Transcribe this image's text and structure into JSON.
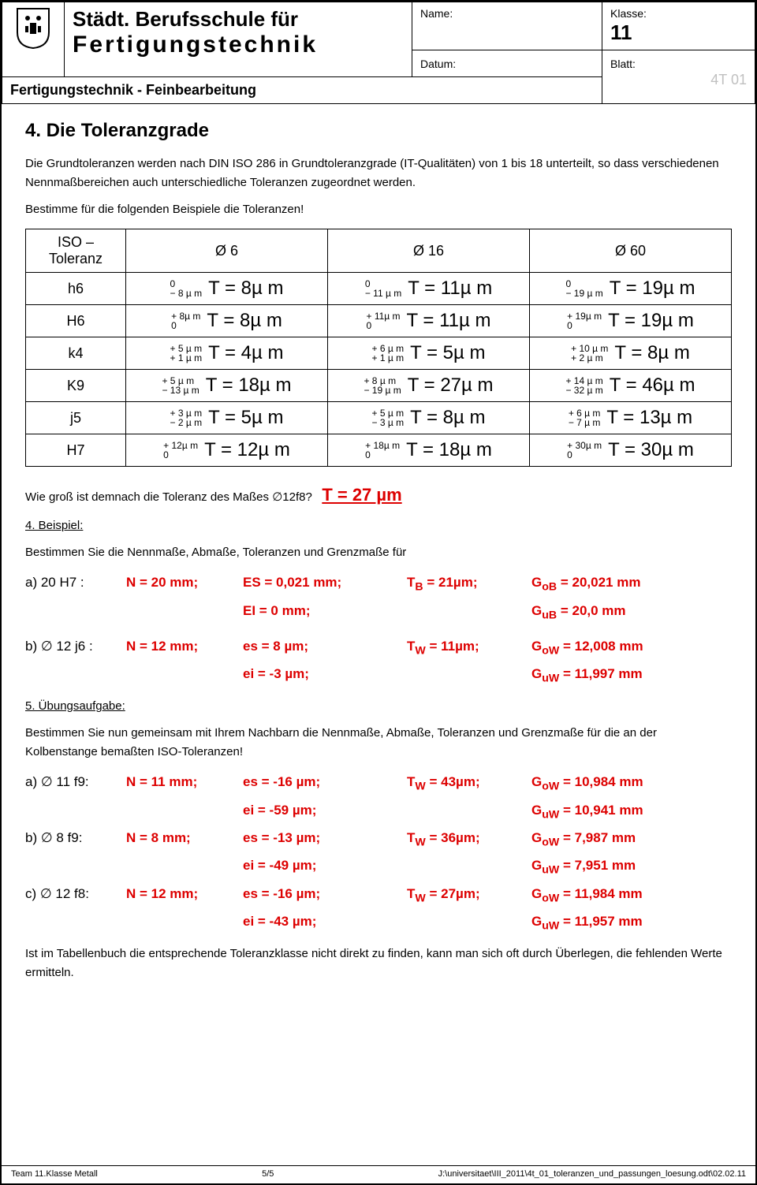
{
  "header": {
    "school_line1": "Städt. Berufsschule für",
    "school_line2": "Fertigungstechnik",
    "name_label": "Name:",
    "klasse_label": "Klasse:",
    "klasse_value": "11",
    "subtitle": "Fertigungstechnik - Feinbearbeitung",
    "datum_label": "Datum:",
    "blatt_label": "Blatt:",
    "blatt_code": "4T 01"
  },
  "section_title": "4. Die Toleranzgrade",
  "intro1": "Die Grundtoleranzen werden nach DIN ISO 286 in Grundtoleranzgrade (IT-Qualitäten) von 1 bis 18 unterteilt, so dass verschiedenen Nennmaßbereichen auch unterschiedliche Toleranzen zugeordnet werden.",
  "intro2": "Bestimme für die folgenden Beispiele die Toleranzen!",
  "tol_header": {
    "c0": "ISO – Toleranz",
    "c1": "Ø 6",
    "c2": "Ø 16",
    "c3": "Ø 60"
  },
  "rows": [
    {
      "label": "h6",
      "cells": [
        {
          "up": "0",
          "lo": "− 8 µ m",
          "t": "T = 8µ m"
        },
        {
          "up": "0",
          "lo": "− 11 µ m",
          "t": "T = 11µ m"
        },
        {
          "up": "0",
          "lo": "− 19 µ m",
          "t": "T = 19µ m"
        }
      ]
    },
    {
      "label": "H6",
      "cells": [
        {
          "up": "+ 8µ m",
          "lo": "0",
          "t": "T = 8µ m"
        },
        {
          "up": "+ 11µ m",
          "lo": "0",
          "t": "T = 11µ m"
        },
        {
          "up": "+ 19µ m",
          "lo": "0",
          "t": "T = 19µ m"
        }
      ]
    },
    {
      "label": "k4",
      "cells": [
        {
          "up": "+ 5 µ m",
          "lo": "+ 1 µ m",
          "t": "T = 4µ m"
        },
        {
          "up": "+ 6 µ m",
          "lo": "+ 1 µ m",
          "t": "T = 5µ m"
        },
        {
          "up": "+ 10 µ m",
          "lo": "+ 2 µ m",
          "t": "T = 8µ m"
        }
      ]
    },
    {
      "label": "K9",
      "cells": [
        {
          "up": "+ 5 µ m",
          "lo": "− 13 µ m",
          "t": "T = 18µ m"
        },
        {
          "up": "+ 8 µ m",
          "lo": "− 19 µ m",
          "t": "T = 27µ m"
        },
        {
          "up": "+ 14 µ m",
          "lo": "− 32 µ m",
          "t": "T = 46µ m"
        }
      ]
    },
    {
      "label": "j5",
      "cells": [
        {
          "up": "+ 3 µ m",
          "lo": "− 2 µ m",
          "t": "T = 5µ m"
        },
        {
          "up": "+ 5 µ m",
          "lo": "− 3 µ m",
          "t": "T = 8µ m"
        },
        {
          "up": "+ 6 µ m",
          "lo": "− 7 µ m",
          "t": "T = 13µ m"
        }
      ]
    },
    {
      "label": "H7",
      "cells": [
        {
          "up": "+ 12µ m",
          "lo": "0",
          "t": "T = 12µ m"
        },
        {
          "up": "+ 18µ m",
          "lo": "0",
          "t": "T = 18µ m"
        },
        {
          "up": "+ 30µ m",
          "lo": "0",
          "t": "T = 30µ m"
        }
      ]
    }
  ],
  "q1": "Wie groß ist demnach die Toleranz des Maßes ∅12f8?",
  "q1_ans": "T = 27 µm",
  "ex4_label": "4. Beispiel:",
  "ex4_text": "Bestimmen Sie die Nennmaße, Abmaße, Toleranzen und Grenzmaße für",
  "a": {
    "lab": "a) 20 H7 :",
    "N": "N = 20 mm;",
    "ES": "ES = 0,021 mm;",
    "EI": "EI  = 0 mm;",
    "T": "T",
    "Tsub": "B",
    "Tval": " = 21µm;",
    "GoB": "G",
    "GoBsub": "oB",
    "GoBval": " = 20,021 mm",
    "GuB": "G",
    "GuBsub": "uB",
    "GuBval": " = 20,0 mm"
  },
  "b": {
    "lab": "b) ∅ 12 j6 :",
    "N": "N = 12 mm;",
    "es": "es = 8 µm;",
    "ei": "ei  = -3 µm;",
    "T": "T",
    "Tsub": "W",
    "Tval": " = 11µm;",
    "GoW": "G",
    "GoWsub": "oW",
    "GoWval": " = 12,008 mm",
    "GuW": "G",
    "GuWsub": "uW",
    "GuWval": " = 11,997 mm"
  },
  "ex5_label": "5. Übungsaufgabe:",
  "ex5_text": "Bestimmen Sie nun gemeinsam mit Ihrem Nachbarn die Nennmaße, Abmaße, Toleranzen und Grenzmaße für die an der Kolbenstange bemaßten ISO-Toleranzen!",
  "fa": {
    "lab": "a) ∅ 11 f9:",
    "N": "N = 11 mm;",
    "es": "es = -16 µm;",
    "ei": "ei  = -59 µm;",
    "Tval": " = 43µm;",
    "GoWval": " = 10,984 mm",
    "GuWval": " = 10,941 mm"
  },
  "fb": {
    "lab": "b) ∅ 8 f9:",
    "N": "N = 8 mm;",
    "es": "es = -13 µm;",
    "ei": "ei  = -49 µm;",
    "Tval": " = 36µm;",
    "GoWval": " = 7,987 mm",
    "GuWval": " = 7,951 mm"
  },
  "fc": {
    "lab": "c) ∅ 12 f8:",
    "N": "N = 12 mm;",
    "es": "es = -16 µm;",
    "ei": "ei  = -43 µm;",
    "Tval": " = 27µm;",
    "GoWval": " = 11,984 mm",
    "GuWval": " = 11,957 mm"
  },
  "closing": "Ist im Tabellenbuch die entsprechende Toleranzklasse nicht direkt zu finden, kann man sich oft durch Überlegen, die fehlenden Werte ermitteln.",
  "footer": {
    "left": "Team 11.Klasse Metall",
    "center": "5/5",
    "right": "J:\\universitaet\\III_2011\\4t_01_toleranzen_und_passungen_loesung.odt\\02.02.11"
  }
}
